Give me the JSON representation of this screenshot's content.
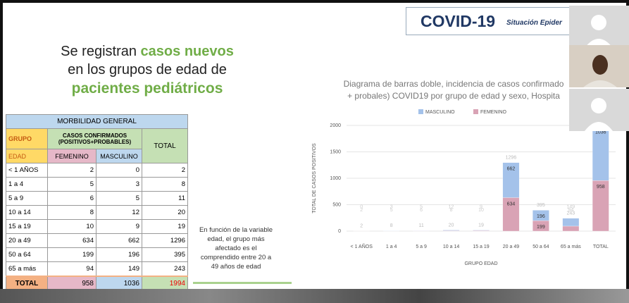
{
  "header": {
    "title": "COVID-19",
    "subtitle": "Situación Epider"
  },
  "heading": {
    "a": "Se registran",
    "b": "casos nuevos",
    "c": "en los grupos de edad de",
    "d": "pacientes pediátricos"
  },
  "table": {
    "title": "MORBILIDAD GENERAL",
    "head": [
      "GRUPO",
      "CASOS CONFIRMADOS (POSITIVOS+PROBABLES)",
      "TOTAL"
    ],
    "subhead": [
      "EDAD",
      "FEMENINO",
      "MASCULINO"
    ],
    "rows": [
      [
        "< 1 AÑOS",
        2,
        0,
        2
      ],
      [
        "1 a 4",
        5,
        3,
        8
      ],
      [
        "5 a 9",
        6,
        5,
        11
      ],
      [
        "10 a 14",
        8,
        12,
        20
      ],
      [
        "15 a 19",
        10,
        9,
        19
      ],
      [
        "20 a 49",
        634,
        662,
        1296
      ],
      [
        "50 a 64",
        199,
        196,
        395
      ],
      [
        "65 a más",
        94,
        149,
        243
      ]
    ],
    "total": [
      "TOTAL",
      958,
      1036,
      1994
    ]
  },
  "note": [
    "En función de la variable",
    "edad, el grupo más",
    "afectado es el",
    "comprendido entre 20 a",
    "49 años de edad"
  ],
  "chart_data": {
    "type": "bar",
    "stacked": true,
    "title": [
      "Diagrama de barras doble, incidencia de casos confirmado",
      "+ probales) COVID19 por grupo de edad y sexo, Hospita"
    ],
    "x_label": "GRUPO EDAD",
    "y_label": "TOTAL DE CASOS POSITIVOS",
    "categories": [
      "< 1 AÑOS",
      "1 a 4",
      "5 a 9",
      "10 a 14",
      "15 a 19",
      "20 a 49",
      "50 a 64",
      "65 a más",
      "TOTAL"
    ],
    "series": [
      {
        "name": "FEMENINO",
        "color": "#d9a3b5",
        "values": [
          2,
          5,
          6,
          8,
          10,
          634,
          199,
          94,
          958
        ]
      },
      {
        "name": "MASCULINO",
        "color": "#a4c2ea",
        "values": [
          0,
          3,
          5,
          12,
          9,
          662,
          196,
          149,
          1036
        ]
      }
    ],
    "legend_order": [
      1,
      0
    ],
    "totals": [
      2,
      8,
      11,
      20,
      19,
      1296,
      395,
      243,
      null
    ],
    "ylim": [
      0,
      2000
    ],
    "yticks": [
      0,
      500,
      1000,
      1500,
      2000
    ],
    "grid": true
  }
}
